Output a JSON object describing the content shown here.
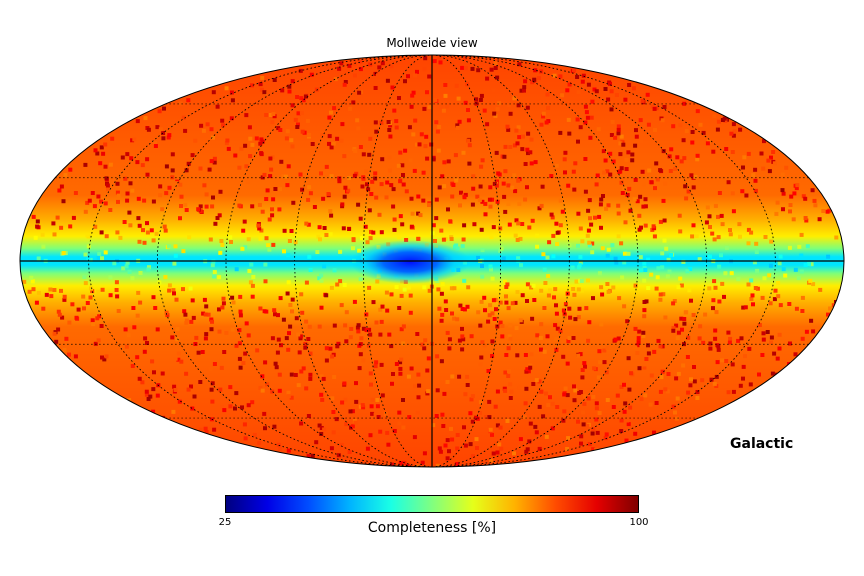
{
  "chart_data": {
    "type": "heatmap",
    "projection": "Mollweide",
    "title": "Mollweide view",
    "coordinate_system": "Galactic",
    "colorbar": {
      "label": "Completeness [%]",
      "min": 25,
      "max": 100,
      "tick_labels": [
        "25",
        "100"
      ],
      "colormap": "jet"
    },
    "graticule": true,
    "description_values": {
      "high_latitude_completeness_pct": 90,
      "galactic_plane_completeness_pct": 45,
      "galactic_center_completeness_pct": 30
    }
  }
}
